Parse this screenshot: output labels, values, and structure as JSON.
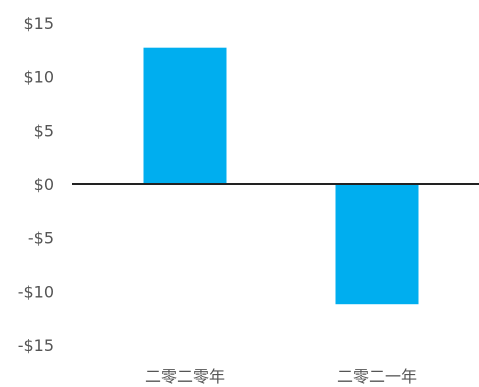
{
  "chart_data": {
    "type": "bar",
    "categories": [
      "二零二零年",
      "二零二一年"
    ],
    "values": [
      12.7,
      -11.2
    ],
    "ylim": [
      -15,
      15
    ],
    "yticks": [
      15,
      10,
      5,
      0,
      -5,
      -10,
      -15
    ],
    "ytick_labels": [
      "$15",
      "$10",
      "$5",
      "$0",
      "-$5",
      "-$10",
      "-$15"
    ],
    "title": "",
    "xlabel": "",
    "ylabel": "",
    "grid": false,
    "bar_color": "#00AEEF",
    "zero_line_color": "#222222"
  }
}
